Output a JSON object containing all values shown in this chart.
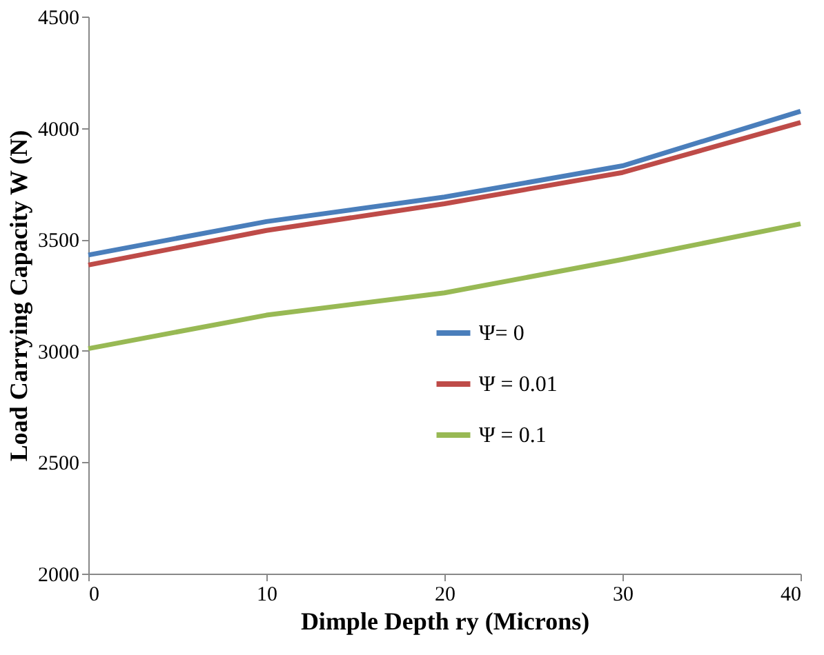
{
  "chart_data": {
    "type": "line",
    "xlabel": "Dimple Depth ry (Microns)",
    "ylabel": "Load Carrying Capacity W (N)",
    "x": [
      0,
      10,
      20,
      30,
      40
    ],
    "series": [
      {
        "name": "Ψ= 0",
        "color": "#4a7ebb",
        "values": [
          3430,
          3580,
          3690,
          3830,
          4075
        ]
      },
      {
        "name": "Ψ = 0.01",
        "color": "#be4b48",
        "values": [
          3385,
          3540,
          3660,
          3800,
          4025
        ]
      },
      {
        "name": "Ψ = 0.1",
        "color": "#98b954",
        "values": [
          3010,
          3160,
          3260,
          3410,
          3570
        ]
      }
    ],
    "xlim": [
      0,
      40
    ],
    "xticks": [
      0,
      10,
      20,
      30,
      40
    ],
    "ylim": [
      2000,
      4500
    ],
    "yticks": [
      2000,
      2500,
      3000,
      3500,
      4000,
      4500
    ],
    "grid": false,
    "legend": "right",
    "marker": "none",
    "line_style": "solid"
  }
}
